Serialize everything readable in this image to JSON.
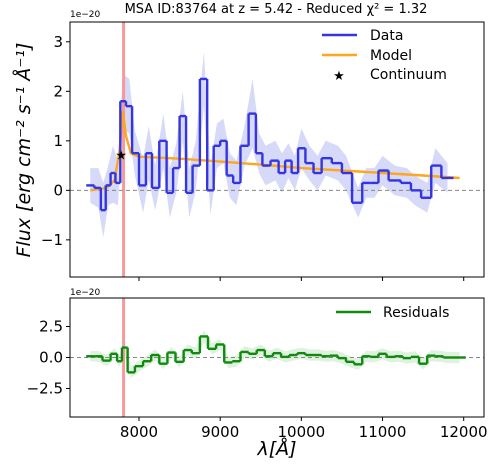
{
  "chart_data": [
    {
      "type": "line",
      "title": "MSA ID:83764 at z = 5.42 - Reduced χ² = 1.32",
      "offset_text": "1e−20",
      "ylabel": "Flux [erg cm⁻² s⁻¹ Å⁻¹]",
      "xlim": [
        7150,
        12250
      ],
      "ylim": [
        -1.75,
        3.4
      ],
      "yticks": [
        -1,
        0,
        1,
        2,
        3
      ],
      "colors": {
        "data": "#3434e0",
        "model": "#ffa51f",
        "band": "#c8ccf4",
        "line": "#f49a9a"
      },
      "marker_x": 7810,
      "legend_position": "upper right",
      "legend": {
        "data": "Data",
        "model": "Model",
        "continuum": "Continuum"
      },
      "series": [
        {
          "name": "Data",
          "style": "steps",
          "x": [
            7400,
            7500,
            7560,
            7620,
            7680,
            7740,
            7800,
            7880,
            7950,
            8050,
            8120,
            8200,
            8300,
            8380,
            8460,
            8540,
            8620,
            8700,
            8800,
            8880,
            8960,
            9040,
            9120,
            9200,
            9300,
            9400,
            9480,
            9560,
            9680,
            9760,
            9840,
            9920,
            10000,
            10100,
            10200,
            10300,
            10450,
            10550,
            10700,
            10800,
            10900,
            11000,
            11150,
            11300,
            11400,
            11550,
            11650,
            11800
          ],
          "y": [
            0.1,
            0.05,
            -0.4,
            0.1,
            0.35,
            0.15,
            1.8,
            1.7,
            0.75,
            0.1,
            0.75,
            0.05,
            1.0,
            -0.05,
            0.45,
            1.5,
            -0.05,
            0.5,
            2.25,
            0.0,
            0.9,
            1.0,
            0.3,
            0.15,
            0.9,
            1.55,
            0.75,
            0.5,
            0.6,
            0.35,
            0.6,
            0.35,
            0.85,
            0.55,
            0.35,
            0.65,
            0.55,
            0.35,
            -0.25,
            0.15,
            0.15,
            0.4,
            0.2,
            0.15,
            0.0,
            -0.15,
            0.5,
            0.25
          ],
          "y_low": [
            -0.25,
            -0.35,
            -0.95,
            -0.3,
            -0.25,
            -0.3,
            1.25,
            1.15,
            0.3,
            -0.45,
            0.2,
            -0.4,
            0.45,
            -0.55,
            -0.05,
            1.0,
            -0.55,
            0.0,
            1.7,
            -0.5,
            0.45,
            0.55,
            -0.15,
            -0.3,
            0.5,
            0.85,
            0.35,
            0.1,
            0.2,
            -0.05,
            0.25,
            0.0,
            0.45,
            0.2,
            0.0,
            0.3,
            0.2,
            0.0,
            -0.55,
            -0.15,
            -0.15,
            0.1,
            -0.1,
            -0.15,
            -0.3,
            -0.45,
            0.15,
            -0.05
          ],
          "y_high": [
            0.45,
            0.45,
            0.15,
            0.5,
            0.9,
            0.6,
            2.35,
            2.25,
            1.2,
            0.65,
            1.3,
            0.5,
            1.55,
            0.45,
            0.95,
            2.0,
            0.45,
            1.0,
            2.8,
            0.5,
            1.35,
            1.45,
            0.75,
            0.6,
            1.3,
            2.25,
            1.15,
            0.9,
            1.0,
            0.75,
            0.95,
            0.7,
            1.25,
            0.9,
            0.7,
            1.0,
            0.9,
            0.7,
            0.05,
            0.45,
            0.45,
            0.7,
            0.5,
            0.45,
            0.3,
            0.15,
            0.85,
            0.55
          ]
        },
        {
          "name": "Model",
          "style": "line",
          "x": [
            7400,
            7600,
            7700,
            7760,
            7800,
            7840,
            7900,
            8000,
            8500,
            9000,
            9500,
            10000,
            10500,
            11000,
            11500,
            11950
          ],
          "y": [
            0.0,
            0.05,
            0.2,
            0.8,
            1.6,
            1.1,
            0.75,
            0.68,
            0.64,
            0.58,
            0.52,
            0.45,
            0.4,
            0.35,
            0.3,
            0.25
          ]
        },
        {
          "name": "Continuum",
          "style": "marker",
          "x": [
            7780
          ],
          "y": [
            0.72
          ]
        }
      ]
    },
    {
      "type": "line",
      "offset_text": "1e−20",
      "xlabel": "λ[Å]",
      "xlim": [
        7150,
        12250
      ],
      "ylim": [
        -4.8,
        4.8
      ],
      "xticks": [
        8000,
        9000,
        10000,
        11000,
        12000
      ],
      "yticks": [
        -2.5,
        0.0,
        2.5
      ],
      "ytick_labels": [
        "−2.5",
        "0.0",
        "2.5"
      ],
      "colors": {
        "residuals": "#0f8a0f",
        "band": "#d4ecd4",
        "line": "#f49a9a"
      },
      "marker_x": 7810,
      "legend_position": "upper right",
      "legend": {
        "residuals": "Residuals"
      },
      "series": [
        {
          "name": "Residuals",
          "style": "steps",
          "x": [
            7400,
            7500,
            7600,
            7700,
            7760,
            7820,
            7900,
            8000,
            8100,
            8200,
            8300,
            8400,
            8500,
            8600,
            8700,
            8800,
            8900,
            9000,
            9100,
            9200,
            9300,
            9400,
            9500,
            9600,
            9700,
            9800,
            9900,
            10000,
            10100,
            10200,
            10300,
            10400,
            10500,
            10600,
            10700,
            10800,
            10900,
            11000,
            11100,
            11200,
            11300,
            11400,
            11500,
            11600,
            11700,
            11800,
            11950
          ],
          "y": [
            0.1,
            0.1,
            -0.25,
            0.3,
            -0.3,
            0.8,
            -1.2,
            -0.7,
            -0.3,
            0.2,
            -0.5,
            0.4,
            -0.35,
            0.6,
            0.35,
            1.7,
            0.7,
            1.05,
            -0.4,
            -0.3,
            0.45,
            0.3,
            0.6,
            0.1,
            0.35,
            0.05,
            0.2,
            0.35,
            0.2,
            0.2,
            0.1,
            0.15,
            -0.05,
            -0.35,
            -0.55,
            0.1,
            0.05,
            0.3,
            0.05,
            0.1,
            -0.05,
            0.05,
            -0.5,
            0.15,
            0.1,
            0.0,
            0.0
          ],
          "y_low": [
            -0.3,
            -0.35,
            -0.7,
            -0.15,
            -0.75,
            0.3,
            -1.65,
            -1.15,
            -0.75,
            -0.25,
            -0.95,
            -0.05,
            -0.8,
            0.15,
            -0.1,
            1.2,
            0.25,
            0.6,
            -0.85,
            -0.75,
            0.0,
            -0.15,
            0.15,
            -0.35,
            -0.1,
            -0.4,
            -0.25,
            -0.1,
            -0.25,
            -0.25,
            -0.35,
            -0.3,
            -0.5,
            -0.8,
            -1.0,
            -0.35,
            -0.4,
            -0.15,
            -0.4,
            -0.35,
            -0.5,
            -0.4,
            -0.95,
            -0.3,
            -0.35,
            -0.45,
            -0.45
          ],
          "y_high": [
            0.5,
            0.55,
            0.2,
            0.75,
            0.15,
            1.3,
            -0.75,
            -0.25,
            0.15,
            0.65,
            -0.05,
            0.85,
            0.1,
            1.05,
            0.8,
            2.2,
            1.15,
            1.5,
            0.05,
            0.15,
            0.9,
            0.75,
            1.05,
            0.55,
            0.8,
            0.5,
            0.65,
            0.8,
            0.65,
            0.65,
            0.55,
            0.6,
            0.4,
            0.1,
            -0.1,
            0.55,
            0.5,
            0.75,
            0.5,
            0.55,
            0.4,
            0.5,
            -0.05,
            0.6,
            0.55,
            0.45,
            0.45
          ]
        }
      ]
    }
  ]
}
